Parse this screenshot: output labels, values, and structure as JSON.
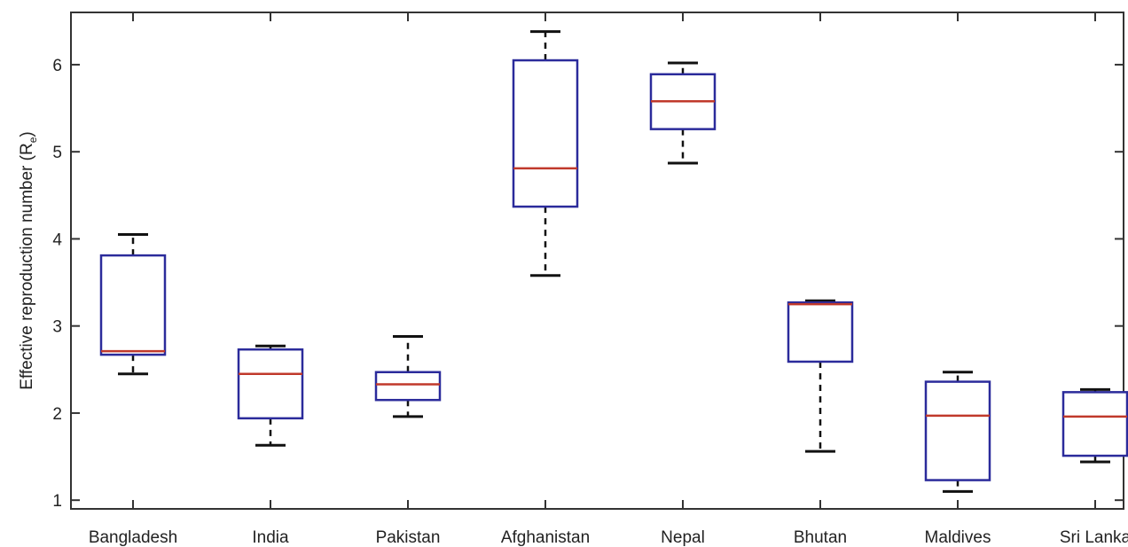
{
  "chart_data": {
    "type": "boxplot",
    "ylabel_main": "Effective reproduction number (R",
    "ylabel_sub": "e",
    "ylabel_close": ")",
    "ylim": [
      0.9,
      6.6
    ],
    "yticks": [
      "1",
      "2",
      "3",
      "4",
      "5",
      "6"
    ],
    "grid": false,
    "colors": {
      "box": "#2b2b9b",
      "median": "#c0392b",
      "whisker": "#111111",
      "frame": "#333333"
    },
    "categories": [
      "Bangladesh",
      "India",
      "Pakistan",
      "Afghanistan",
      "Nepal",
      "Bhutan",
      "Maldives",
      "Sri Lanka"
    ],
    "boxes": [
      {
        "min": 2.45,
        "q1": 2.67,
        "median": 2.71,
        "q3": 3.81,
        "max": 4.05
      },
      {
        "min": 1.63,
        "q1": 1.94,
        "median": 2.45,
        "q3": 2.73,
        "max": 2.77
      },
      {
        "min": 1.96,
        "q1": 2.15,
        "median": 2.33,
        "q3": 2.47,
        "max": 2.88
      },
      {
        "min": 3.58,
        "q1": 4.37,
        "median": 4.81,
        "q3": 6.05,
        "max": 6.38
      },
      {
        "min": 4.87,
        "q1": 5.26,
        "median": 5.58,
        "q3": 5.89,
        "max": 6.02
      },
      {
        "min": 1.56,
        "q1": 2.59,
        "median": 3.25,
        "q3": 3.27,
        "max": 3.29
      },
      {
        "min": 1.1,
        "q1": 1.23,
        "median": 1.97,
        "q3": 2.36,
        "max": 2.47
      },
      {
        "min": 1.44,
        "q1": 1.51,
        "median": 1.96,
        "q3": 2.24,
        "max": 2.27
      }
    ]
  }
}
